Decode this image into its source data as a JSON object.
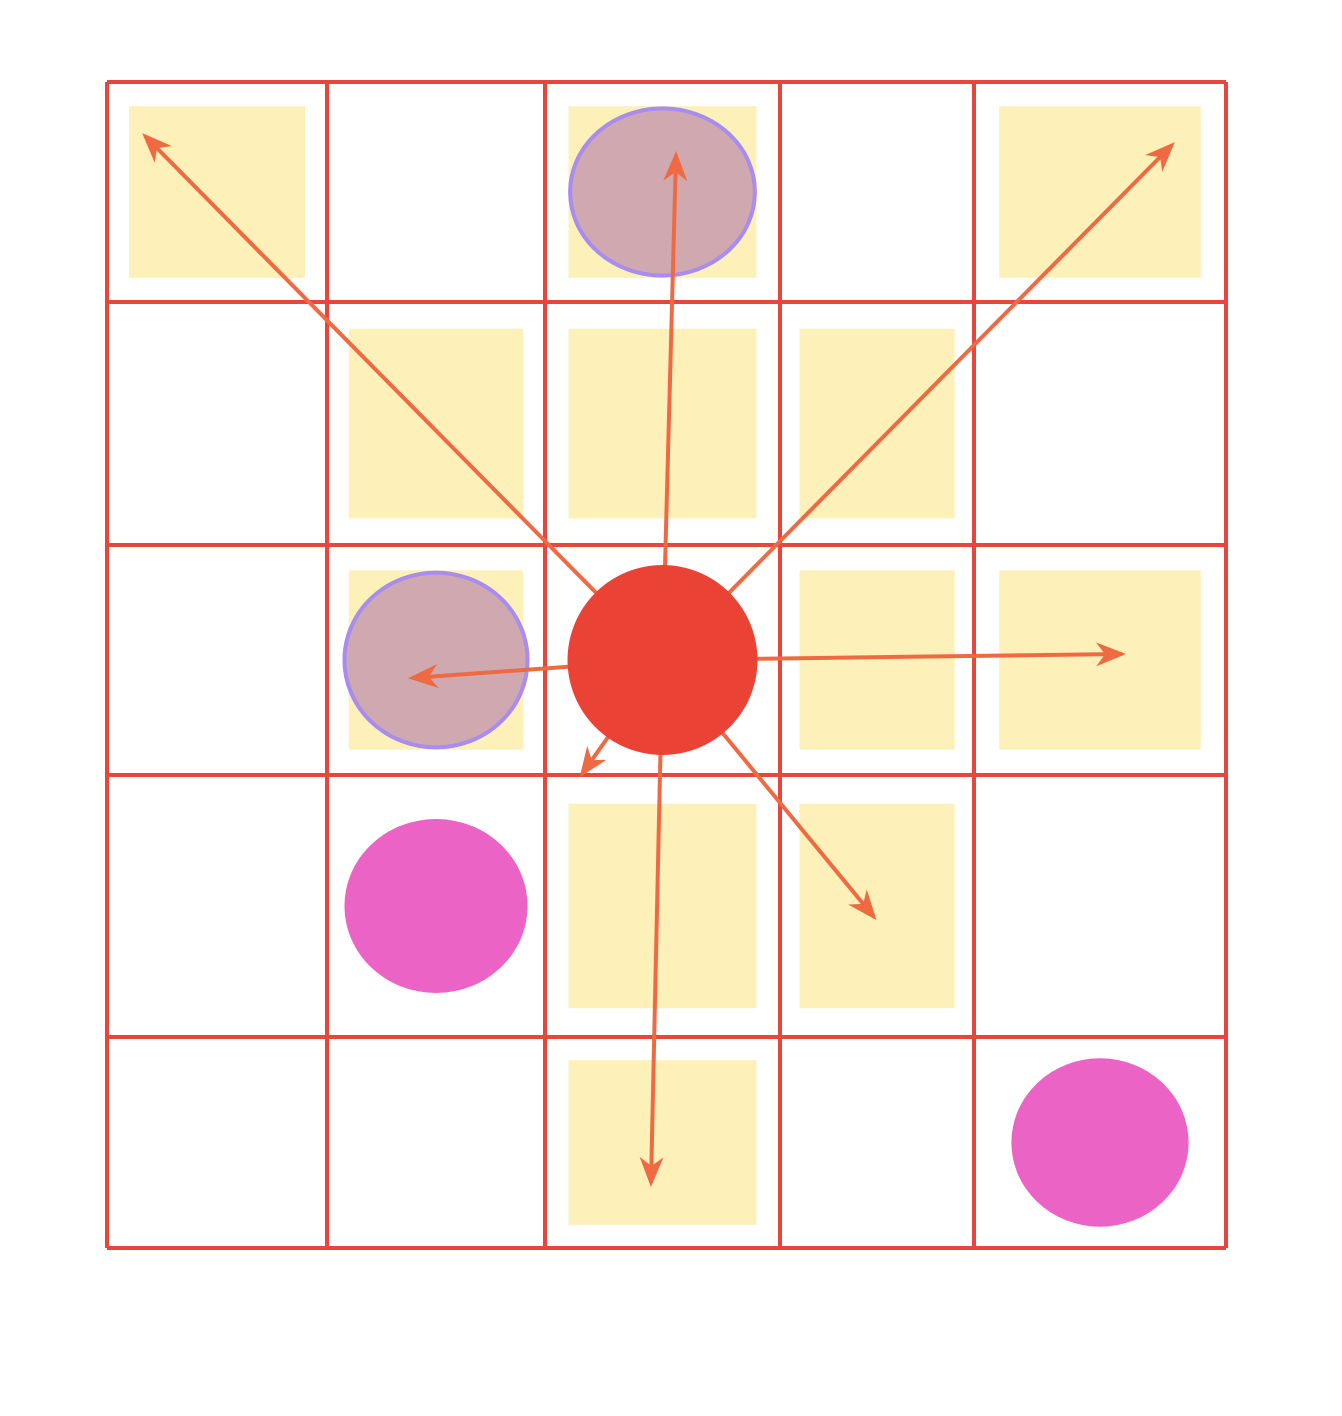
{
  "diagram": {
    "grid": {
      "rows": 5,
      "cols": 5
    },
    "colors": {
      "grid_line": "#e8453c",
      "yellow_tile": "#fdf0b8",
      "blue_circle": "#a98cf0",
      "overlap_fill": "#cfa8b0",
      "magenta_circle": "#ec63c6",
      "center_dot": "#ea4335",
      "arrow": "#ef6a42"
    },
    "center": {
      "row": 3,
      "col": 3
    },
    "yellow_tiles": [
      {
        "row": 1,
        "col": 1
      },
      {
        "row": 1,
        "col": 3
      },
      {
        "row": 1,
        "col": 5
      },
      {
        "row": 2,
        "col": 2
      },
      {
        "row": 2,
        "col": 3
      },
      {
        "row": 2,
        "col": 4
      },
      {
        "row": 3,
        "col": 2
      },
      {
        "row": 3,
        "col": 4
      },
      {
        "row": 3,
        "col": 5
      },
      {
        "row": 4,
        "col": 3
      },
      {
        "row": 4,
        "col": 4
      },
      {
        "row": 5,
        "col": 3
      }
    ],
    "blue_circles": [
      {
        "row": 1,
        "col": 3
      },
      {
        "row": 3,
        "col": 2
      }
    ],
    "magenta_circles": [
      {
        "row": 4,
        "col": 2
      },
      {
        "row": 5,
        "col": 5
      }
    ],
    "arrows": [
      {
        "direction": "up-left"
      },
      {
        "direction": "up"
      },
      {
        "direction": "up-right"
      },
      {
        "direction": "left"
      },
      {
        "direction": "right"
      },
      {
        "direction": "down-left"
      },
      {
        "direction": "down"
      },
      {
        "direction": "down-right"
      }
    ]
  }
}
